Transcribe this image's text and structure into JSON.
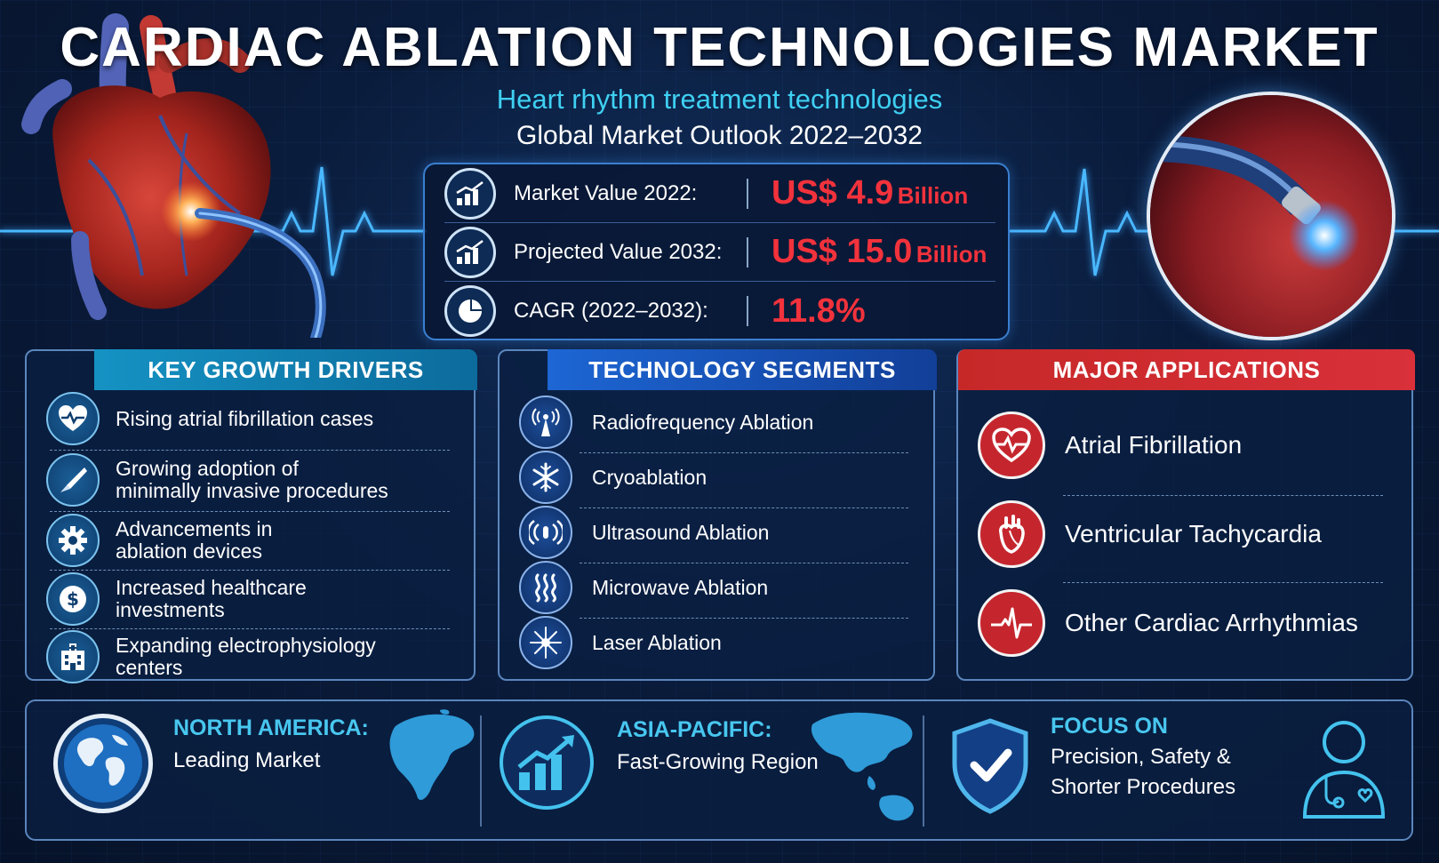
{
  "header": {
    "title": "CARDIAC ABLATION TECHNOLOGIES MARKET",
    "subtitle": "Heart rhythm treatment technologies",
    "outlook": "Global Market Outlook 2022–2032"
  },
  "stats": [
    {
      "icon": "growth-chart-icon",
      "label": "Market Value 2022:",
      "value": "US$ 4.9",
      "unit": "Billion"
    },
    {
      "icon": "growth-chart-icon",
      "label": "Projected Value 2032:",
      "value": "US$ 15.0",
      "unit": "Billion"
    },
    {
      "icon": "pie-chart-icon",
      "label": "CAGR (2022–2032):",
      "value": "11.8%",
      "unit": ""
    }
  ],
  "drivers": {
    "title": "KEY GROWTH DRIVERS",
    "items": [
      {
        "icon": "heart-pulse-icon",
        "line1": "Rising atrial fibrillation cases",
        "line2": ""
      },
      {
        "icon": "scalpel-icon",
        "line1": "Growing adoption of",
        "line2": "minimally invasive procedures"
      },
      {
        "icon": "gear-icon",
        "line1": "Advancements in",
        "line2": "ablation devices"
      },
      {
        "icon": "dollar-icon",
        "line1": "Increased healthcare",
        "line2": "investments"
      },
      {
        "icon": "hospital-icon",
        "line1": "Expanding electrophysiology",
        "line2": "centers"
      }
    ]
  },
  "segments": {
    "title": "TECHNOLOGY SEGMENTS",
    "items": [
      {
        "icon": "radio-tower-icon",
        "label": "Radiofrequency Ablation"
      },
      {
        "icon": "snowflake-icon",
        "label": "Cryoablation"
      },
      {
        "icon": "sound-waves-icon",
        "label": "Ultrasound Ablation"
      },
      {
        "icon": "heat-waves-icon",
        "label": "Microwave Ablation"
      },
      {
        "icon": "laser-burst-icon",
        "label": "Laser Ablation"
      }
    ]
  },
  "applications": {
    "title": "MAJOR APPLICATIONS",
    "items": [
      {
        "icon": "heart-pulse-icon",
        "label": "Atrial Fibrillation"
      },
      {
        "icon": "anatomical-heart-icon",
        "label": "Ventricular Tachycardia"
      },
      {
        "icon": "ecg-wave-icon",
        "label": "Other Cardiac Arrhythmias"
      }
    ]
  },
  "bottom": {
    "north_america": {
      "icon": "globe-icon",
      "head": "NORTH AMERICA:",
      "text": "Leading Market"
    },
    "asia_pacific": {
      "icon": "rising-bars-icon",
      "head": "ASIA-PACIFIC:",
      "text": "Fast-Growing Region"
    },
    "focus": {
      "icon": "shield-check-icon",
      "head": "FOCUS ON",
      "line1": "Precision, Safety &",
      "line2": "Shorter Procedures"
    }
  },
  "colors": {
    "background": "#0a1c3c",
    "accent_cyan": "#3ed0f2",
    "value_red": "#f2323c",
    "drivers_header": "#1592c3",
    "segments_header": "#1d66d4",
    "applications_header": "#c62828"
  }
}
